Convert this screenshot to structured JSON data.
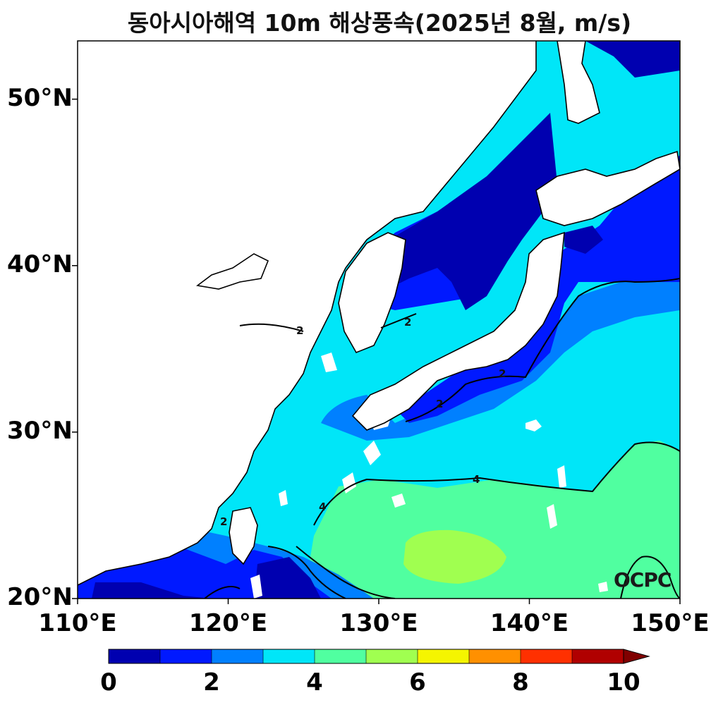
{
  "title": "동아시아해역 10m 해상풍속(2025년 8월, m/s)",
  "map": {
    "lon_range": [
      110,
      150
    ],
    "lat_range": [
      20,
      53.5
    ],
    "lon_ticks": [
      {
        "value": 110,
        "label": "110°E"
      },
      {
        "value": 120,
        "label": "120°E"
      },
      {
        "value": 130,
        "label": "130°E"
      },
      {
        "value": 140,
        "label": "140°E"
      },
      {
        "value": 150,
        "label": "150°E"
      }
    ],
    "lat_ticks": [
      {
        "value": 20,
        "label": "20°N"
      },
      {
        "value": 30,
        "label": "30°N"
      },
      {
        "value": 40,
        "label": "40°N"
      },
      {
        "value": 50,
        "label": "50°N"
      }
    ],
    "contour_labels": [
      "2",
      "2",
      "2",
      "2",
      "4",
      "4",
      "2"
    ],
    "logo_text": "OCPC"
  },
  "colorbar": {
    "levels": [
      0,
      1,
      2,
      3,
      4,
      5,
      6,
      7,
      8,
      9,
      10
    ],
    "colors": [
      "#0000b0",
      "#0019ff",
      "#0080ff",
      "#00e6f8",
      "#50ffa0",
      "#a0ff50",
      "#f5f500",
      "#ff9000",
      "#ff3000",
      "#b00000"
    ],
    "extend_color": "#800000",
    "tick_labels": [
      "0",
      "2",
      "4",
      "6",
      "8",
      "10"
    ],
    "extend": "max",
    "units": "m/s"
  },
  "colors": {
    "land": "#ffffff",
    "coastline": "#000000"
  }
}
